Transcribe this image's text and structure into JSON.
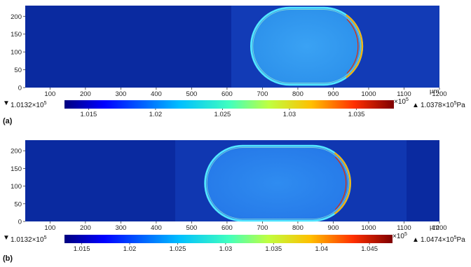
{
  "chart_data": [
    {
      "type": "heatmap",
      "panel_label": "(a)",
      "x_ticks": [
        100,
        200,
        300,
        400,
        500,
        600,
        700,
        800,
        900,
        1000,
        1100,
        1200
      ],
      "x_unit": "µm",
      "y_ticks": [
        0,
        50,
        100,
        150,
        200
      ],
      "xlim": [
        30,
        1200
      ],
      "ylim": [
        0,
        230
      ],
      "colorbar": {
        "min_text": "1.0132×10",
        "min_exp": "5",
        "max_text": "1.0378×10",
        "max_exp": "5",
        "max_unit": "Pa",
        "scale_text": "×10",
        "scale_exp": "5",
        "range": [
          1.0132,
          1.0378
        ],
        "ticks": [
          1.015,
          1.02,
          1.025,
          1.03,
          1.035
        ],
        "tick_labels": [
          "1.015",
          "1.02",
          "1.025",
          "1.03",
          "1.035"
        ]
      },
      "droplet": {
        "x_left": 668,
        "x_right": 982,
        "y_bottom": 8,
        "y_top": 224,
        "front": "right"
      }
    },
    {
      "type": "heatmap",
      "panel_label": "(b)",
      "x_ticks": [
        100,
        200,
        300,
        400,
        500,
        600,
        700,
        800,
        900,
        1000,
        1100,
        1200
      ],
      "x_unit": "µm",
      "y_ticks": [
        0,
        50,
        100,
        150,
        200
      ],
      "xlim": [
        30,
        1200
      ],
      "ylim": [
        0,
        230
      ],
      "colorbar": {
        "min_text": "1.0132×10",
        "min_exp": "5",
        "max_text": "1.0474×10",
        "max_exp": "5",
        "max_unit": "Pa",
        "scale_text": "×10",
        "scale_exp": "5",
        "range": [
          1.0132,
          1.0474
        ],
        "ticks": [
          1.015,
          1.02,
          1.025,
          1.03,
          1.035,
          1.04,
          1.045
        ],
        "tick_labels": [
          "1.015",
          "1.02",
          "1.025",
          "1.03",
          "1.035",
          "1.04",
          "1.045"
        ]
      },
      "droplet": {
        "x_left": 538,
        "x_right": 948,
        "y_bottom": 2,
        "y_top": 214,
        "front": "right"
      }
    }
  ]
}
